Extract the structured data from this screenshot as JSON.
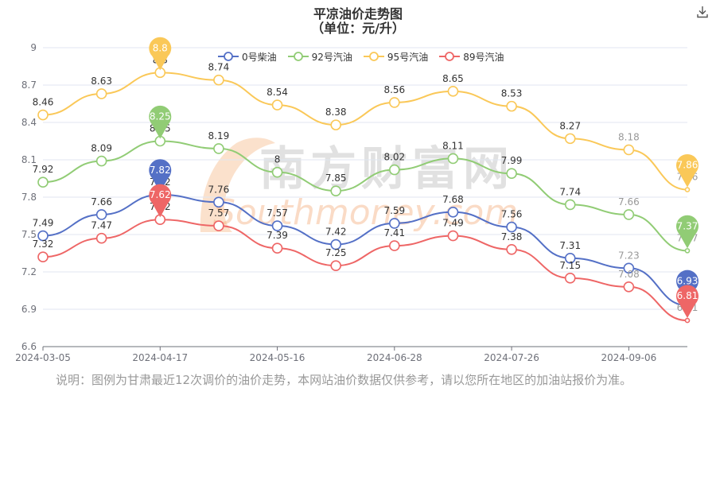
{
  "title": "平凉油价走势图",
  "subtitle": "（单位：元/升）",
  "note": "说明：图例为甘肃最近12次调价的油价走势，本网站油价数据仅供参考，请以您所在地区的加油站报价为准。",
  "watermark": {
    "cn": "南方财富网",
    "en": "Southmoney.com"
  },
  "icons": {
    "download": "download-icon"
  },
  "chart_data": {
    "type": "line",
    "title": "平凉油价走势图",
    "subtitle": "（单位：元/升）",
    "ylim": [
      6.6,
      9.0
    ],
    "yticks": [
      "6.6",
      "6.9",
      "7.2",
      "7.5",
      "7.8",
      "8.1",
      "8.4",
      "8.7",
      "9"
    ],
    "ytick_values": [
      6.6,
      6.9,
      7.2,
      7.5,
      7.8,
      8.1,
      8.4,
      8.7,
      9.0
    ],
    "x_tick_labels": [
      "2024-03-05",
      "2024-04-17",
      "2024-05-16",
      "2024-06-28",
      "2024-07-26",
      "2024-09-06"
    ],
    "x_tick_index": [
      0,
      2,
      4,
      6,
      8,
      10
    ],
    "x_count": 12,
    "grid": true,
    "legend_position": "top",
    "series": [
      {
        "name": "0号柴油",
        "color": "#5470c6",
        "values": [
          7.49,
          7.66,
          7.82,
          7.76,
          7.57,
          7.42,
          7.59,
          7.68,
          7.56,
          7.31,
          7.23,
          6.93
        ],
        "labels": [
          "7.49",
          "7.66",
          "7.82",
          "7.76",
          "7.57",
          "7.42",
          "7.59",
          "7.68",
          "7.56",
          "7.31",
          "7.23",
          "6.93"
        ],
        "max_index": 2,
        "min_index": 11
      },
      {
        "name": "92号汽油",
        "color": "#91cc75",
        "values": [
          7.92,
          8.09,
          8.25,
          8.19,
          8.0,
          7.85,
          8.02,
          8.11,
          7.99,
          7.74,
          7.66,
          7.37
        ],
        "labels": [
          "7.92",
          "8.09",
          "8.25",
          "8.19",
          "8",
          "7.85",
          "8.02",
          "8.11",
          "7.99",
          "7.74",
          "7.66",
          "7.37"
        ],
        "max_index": 2,
        "min_index": 11
      },
      {
        "name": "95号汽油",
        "color": "#fac858",
        "values": [
          8.46,
          8.63,
          8.8,
          8.74,
          8.54,
          8.38,
          8.56,
          8.65,
          8.53,
          8.27,
          8.18,
          7.86
        ],
        "labels": [
          "8.46",
          "8.63",
          "8.8",
          "8.74",
          "8.54",
          "8.38",
          "8.56",
          "8.65",
          "8.53",
          "8.27",
          "8.18",
          "7.86"
        ],
        "max_index": 2,
        "min_index": 11
      },
      {
        "name": "89号汽油",
        "color": "#ee6666",
        "values": [
          7.32,
          7.47,
          7.62,
          7.57,
          7.39,
          7.25,
          7.41,
          7.49,
          7.38,
          7.15,
          7.08,
          6.81
        ],
        "labels": [
          "7.32",
          "7.47",
          "7.62",
          "7.57",
          "7.39",
          "7.25",
          "7.41",
          "7.49",
          "7.38",
          "7.15",
          "7.08",
          "6.81"
        ],
        "max_index": 2,
        "min_index": 11
      }
    ]
  }
}
